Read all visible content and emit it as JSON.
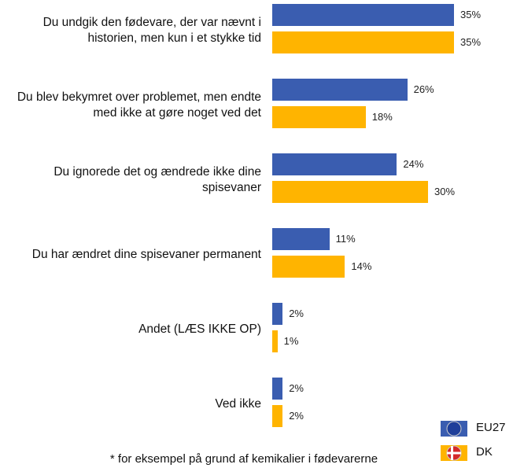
{
  "chart_data": {
    "type": "bar",
    "orientation": "horizontal",
    "categories": [
      "Du undgik den fødevare, der var nævnt i historien, men kun i et stykke tid",
      "Du blev bekymret over problemet, men endte med ikke at gøre noget ved det",
      "Du ignorede det og ændrede ikke dine spisevaner",
      "Du har ændret dine spisevaner permanent",
      "Andet (LÆS IKKE OP)",
      "Ved ikke"
    ],
    "series": [
      {
        "name": "EU27",
        "color": "#3a5db0",
        "values": [
          35,
          26,
          24,
          11,
          2,
          2
        ],
        "value_labels": [
          "35%",
          "26%",
          "24%",
          "11%",
          "2%",
          "2%"
        ]
      },
      {
        "name": "DK",
        "color": "#ffb400",
        "values": [
          35,
          18,
          30,
          14,
          1,
          2
        ],
        "value_labels": [
          "35%",
          "18%",
          "30%",
          "14%",
          "1%",
          "2%"
        ]
      }
    ],
    "footnote": "* for eksempel på grund af kemikalier i fødevarerne"
  }
}
